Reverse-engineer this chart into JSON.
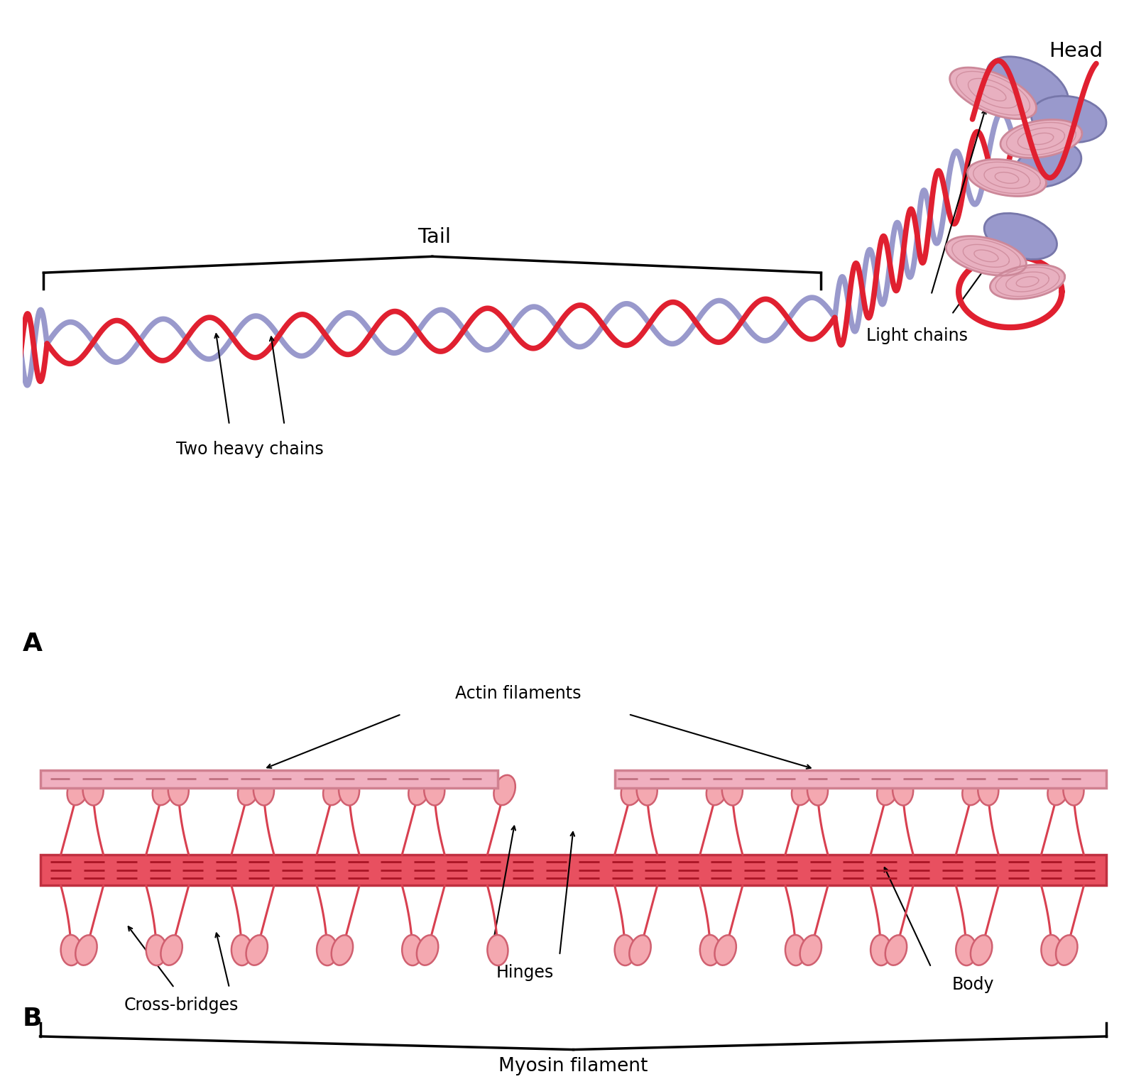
{
  "background_color": "#ffffff",
  "red_color": "#e02030",
  "lavender_color": "#9999cc",
  "pink_light": "#e8b0c0",
  "pink_medium": "#cc8899",
  "pink_head_fill": "#f0c0cc",
  "pink_head_edge": "#cc7788",
  "lav_dark": "#7777aa",
  "fig_width": 16.15,
  "fig_height": 15.27,
  "label_A": "A",
  "label_B": "B",
  "title_head": "Head",
  "title_tail": "Tail",
  "label_two_heavy": "Two heavy chains",
  "label_light_chains": "Light chains",
  "label_actin": "Actin filaments",
  "label_cross_bridges": "Cross-bridges",
  "label_hinges": "Hinges",
  "label_body": "Body",
  "label_myosin": "Myosin filament",
  "helix_lw": 5.5,
  "helix_amp": 0.32,
  "helix_freq": 8.5
}
